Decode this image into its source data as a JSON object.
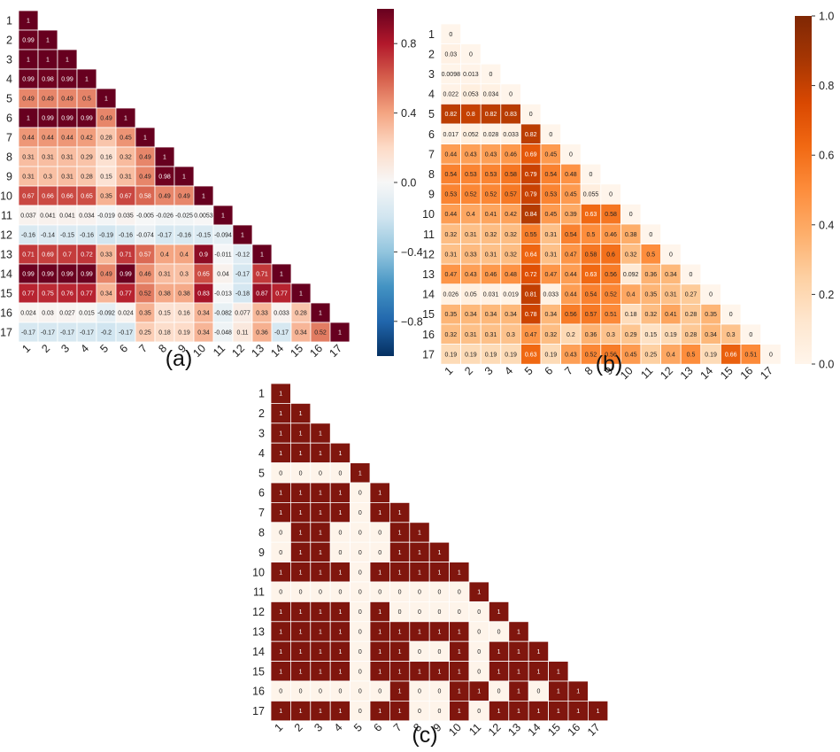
{
  "chart_data": [
    {
      "type": "heatmap",
      "panel_label": "(a)",
      "categories": [
        "1",
        "2",
        "3",
        "4",
        "5",
        "6",
        "7",
        "8",
        "9",
        "10",
        "11",
        "12",
        "13",
        "14",
        "15",
        "16",
        "17"
      ],
      "colorbar": {
        "ticks": [
          0.8,
          0.4,
          0.0,
          -0.4,
          -0.8
        ],
        "tick_labels": [
          "0.8",
          "0.4",
          "0.0",
          "−0.4",
          "−0.8"
        ],
        "range": [
          -1,
          1
        ]
      },
      "colormap": "RdBu_r",
      "rows": [
        [
          "1"
        ],
        [
          "0.99",
          "1"
        ],
        [
          "1",
          "1",
          "1"
        ],
        [
          "0.99",
          "0.98",
          "0.99",
          "1"
        ],
        [
          "0.49",
          "0.49",
          "0.49",
          "0.5",
          "1"
        ],
        [
          "1",
          "0.99",
          "0.99",
          "0.99",
          "0.49",
          "1"
        ],
        [
          "0.44",
          "0.44",
          "0.44",
          "0.42",
          "0.28",
          "0.45",
          "1"
        ],
        [
          "0.31",
          "0.31",
          "0.31",
          "0.29",
          "0.16",
          "0.32",
          "0.49",
          "1"
        ],
        [
          "0.31",
          "0.3",
          "0.31",
          "0.28",
          "0.15",
          "0.31",
          "0.49",
          "0.98",
          "1"
        ],
        [
          "0.67",
          "0.66",
          "0.66",
          "0.65",
          "0.35",
          "0.67",
          "0.58",
          "0.49",
          "0.49",
          "1"
        ],
        [
          "0.037",
          "0.041",
          "0.041",
          "0.034",
          "-0.019",
          "0.035",
          "-0.005",
          "-0.026",
          "-0.025",
          "0.0053",
          "1"
        ],
        [
          "-0.16",
          "-0.14",
          "-0.15",
          "-0.16",
          "-0.19",
          "-0.16",
          "-0.074",
          "-0.17",
          "-0.16",
          "-0.15",
          "-0.094",
          "1"
        ],
        [
          "0.71",
          "0.69",
          "0.7",
          "0.72",
          "0.33",
          "0.71",
          "0.57",
          "0.4",
          "0.4",
          "0.9",
          "-0.011",
          "-0.12",
          "1"
        ],
        [
          "0.99",
          "0.99",
          "0.99",
          "0.99",
          "0.49",
          "0.99",
          "0.46",
          "0.31",
          "0.3",
          "0.65",
          "0.04",
          "-0.17",
          "0.71",
          "1"
        ],
        [
          "0.77",
          "0.75",
          "0.76",
          "0.77",
          "0.34",
          "0.77",
          "0.52",
          "0.38",
          "0.38",
          "0.83",
          "-0.013",
          "-0.18",
          "0.87",
          "0.77",
          "1"
        ],
        [
          "0.024",
          "0.03",
          "0.027",
          "0.015",
          "-0.092",
          "0.024",
          "0.35",
          "0.15",
          "0.16",
          "0.34",
          "-0.082",
          "0.077",
          "0.33",
          "0.033",
          "0.28",
          "1"
        ],
        [
          "-0.17",
          "-0.17",
          "-0.17",
          "-0.17",
          "-0.2",
          "-0.17",
          "0.25",
          "0.18",
          "0.19",
          "0.34",
          "-0.048",
          "0.11",
          "0.36",
          "-0.17",
          "0.34",
          "0.52",
          "1"
        ]
      ]
    },
    {
      "type": "heatmap",
      "panel_label": "(b)",
      "categories": [
        "1",
        "2",
        "3",
        "4",
        "5",
        "6",
        "7",
        "8",
        "9",
        "10",
        "11",
        "12",
        "13",
        "14",
        "15",
        "16",
        "17"
      ],
      "colorbar": {
        "ticks": [
          1.0,
          0.8,
          0.6,
          0.4,
          0.2,
          0.0
        ],
        "tick_labels": [
          "1.0",
          "0.8",
          "0.6",
          "0.4",
          "0.2",
          "0.0"
        ],
        "range": [
          0,
          1
        ]
      },
      "colormap": "Oranges",
      "rows": [
        [
          "0"
        ],
        [
          "0.03",
          "0"
        ],
        [
          "0.0098",
          "0.013",
          "0"
        ],
        [
          "0.022",
          "0.053",
          "0.034",
          "0"
        ],
        [
          "0.82",
          "0.8",
          "0.82",
          "0.83",
          "0"
        ],
        [
          "0.017",
          "0.052",
          "0.028",
          "0.033",
          "0.82",
          "0"
        ],
        [
          "0.44",
          "0.43",
          "0.43",
          "0.46",
          "0.69",
          "0.45",
          "0"
        ],
        [
          "0.54",
          "0.53",
          "0.53",
          "0.58",
          "0.79",
          "0.54",
          "0.48",
          "0"
        ],
        [
          "0.53",
          "0.52",
          "0.52",
          "0.57",
          "0.79",
          "0.53",
          "0.45",
          "0.055",
          "0"
        ],
        [
          "0.44",
          "0.4",
          "0.41",
          "0.42",
          "0.84",
          "0.45",
          "0.39",
          "0.63",
          "0.58",
          "0"
        ],
        [
          "0.32",
          "0.31",
          "0.32",
          "0.32",
          "0.55",
          "0.31",
          "0.54",
          "0.5",
          "0.46",
          "0.38",
          "0"
        ],
        [
          "0.31",
          "0.33",
          "0.31",
          "0.32",
          "0.64",
          "0.31",
          "0.47",
          "0.58",
          "0.6",
          "0.32",
          "0.5",
          "0"
        ],
        [
          "0.47",
          "0.43",
          "0.46",
          "0.48",
          "0.72",
          "0.47",
          "0.44",
          "0.63",
          "0.56",
          "0.092",
          "0.36",
          "0.34",
          "0"
        ],
        [
          "0.026",
          "0.05",
          "0.031",
          "0.019",
          "0.81",
          "0.033",
          "0.44",
          "0.54",
          "0.52",
          "0.4",
          "0.35",
          "0.31",
          "0.27",
          "0"
        ],
        [
          "0.35",
          "0.34",
          "0.34",
          "0.34",
          "0.78",
          "0.34",
          "0.56",
          "0.57",
          "0.51",
          "0.18",
          "0.32",
          "0.41",
          "0.28",
          "0.35",
          "0"
        ],
        [
          "0.32",
          "0.31",
          "0.31",
          "0.3",
          "0.47",
          "0.32",
          "0.2",
          "0.36",
          "0.3",
          "0.29",
          "0.15",
          "0.19",
          "0.28",
          "0.34",
          "0.3",
          "0"
        ],
        [
          "0.19",
          "0.19",
          "0.19",
          "0.19",
          "0.63",
          "0.19",
          "0.43",
          "0.52",
          "0.56",
          "0.45",
          "0.25",
          "0.4",
          "0.5",
          "0.19",
          "0.66",
          "0.51",
          "0"
        ]
      ]
    },
    {
      "type": "heatmap",
      "panel_label": "(c)",
      "categories": [
        "1",
        "2",
        "3",
        "4",
        "5",
        "6",
        "7",
        "8",
        "9",
        "10",
        "11",
        "12",
        "13",
        "14",
        "15",
        "16",
        "17"
      ],
      "colormap": "binary-brown",
      "rows": [
        [
          "1"
        ],
        [
          "1",
          "1"
        ],
        [
          "1",
          "1",
          "1"
        ],
        [
          "1",
          "1",
          "1",
          "1"
        ],
        [
          "0",
          "0",
          "0",
          "0",
          "1"
        ],
        [
          "1",
          "1",
          "1",
          "1",
          "0",
          "1"
        ],
        [
          "1",
          "1",
          "1",
          "1",
          "0",
          "1",
          "1"
        ],
        [
          "0",
          "1",
          "1",
          "0",
          "0",
          "0",
          "1",
          "1"
        ],
        [
          "0",
          "1",
          "1",
          "0",
          "0",
          "0",
          "1",
          "1",
          "1"
        ],
        [
          "1",
          "1",
          "1",
          "1",
          "0",
          "1",
          "1",
          "1",
          "1",
          "1"
        ],
        [
          "0",
          "0",
          "0",
          "0",
          "0",
          "0",
          "0",
          "0",
          "0",
          "0",
          "1"
        ],
        [
          "1",
          "1",
          "1",
          "1",
          "0",
          "1",
          "0",
          "0",
          "0",
          "0",
          "0",
          "1"
        ],
        [
          "1",
          "1",
          "1",
          "1",
          "0",
          "1",
          "1",
          "1",
          "1",
          "1",
          "0",
          "0",
          "1"
        ],
        [
          "1",
          "1",
          "1",
          "1",
          "0",
          "1",
          "1",
          "0",
          "0",
          "1",
          "0",
          "1",
          "1",
          "1"
        ],
        [
          "1",
          "1",
          "1",
          "1",
          "0",
          "1",
          "1",
          "1",
          "1",
          "1",
          "0",
          "1",
          "1",
          "1",
          "1"
        ],
        [
          "0",
          "0",
          "0",
          "0",
          "0",
          "0",
          "1",
          "0",
          "0",
          "1",
          "1",
          "0",
          "1",
          "0",
          "1",
          "1"
        ],
        [
          "1",
          "1",
          "1",
          "1",
          "0",
          "1",
          "1",
          "0",
          "0",
          "1",
          "0",
          "1",
          "1",
          "1",
          "1",
          "1",
          "1"
        ]
      ]
    }
  ]
}
